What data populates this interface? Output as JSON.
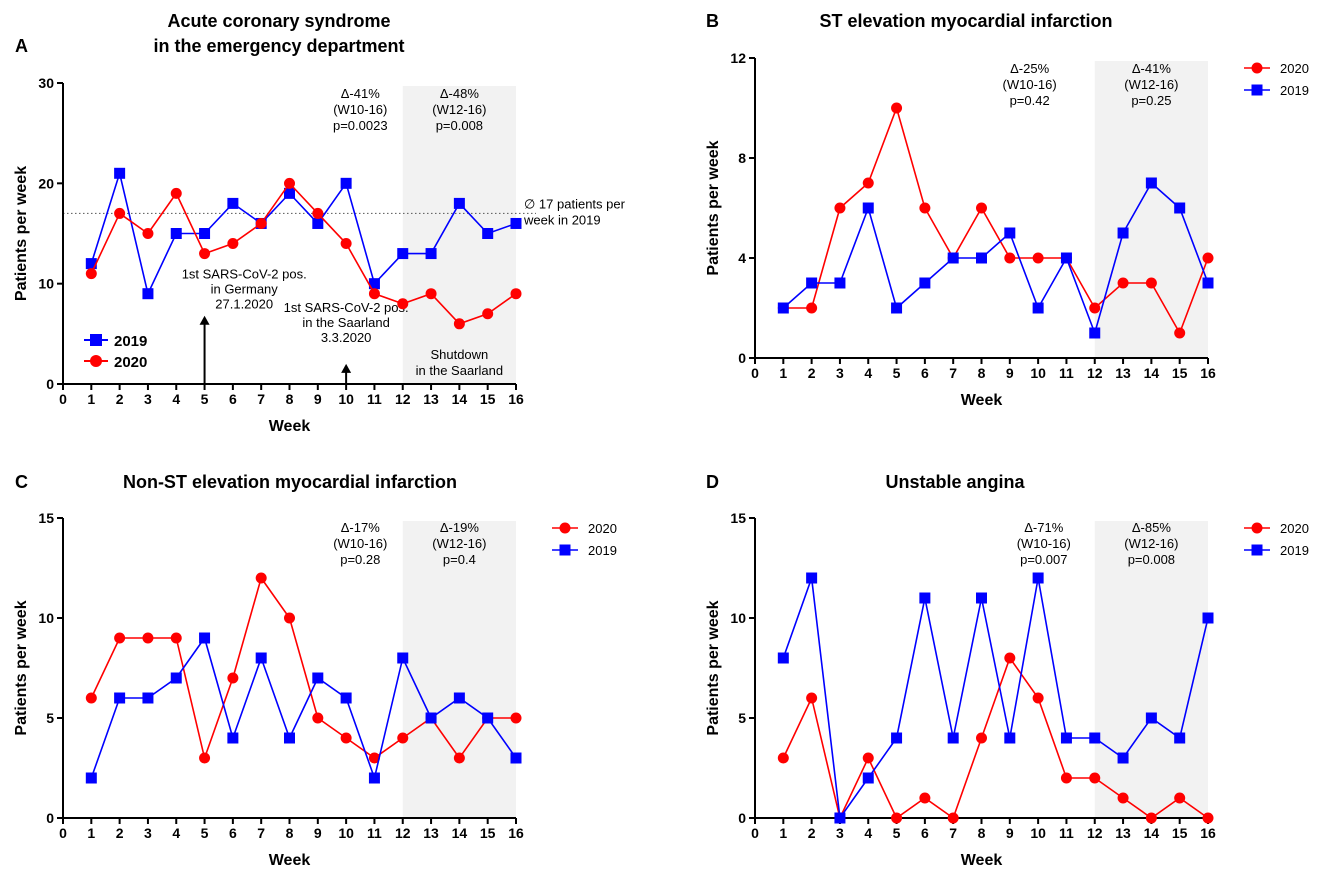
{
  "chart_data": [
    {
      "letter": "A",
      "type": "line",
      "title_lines": [
        "Acute coronary syndrome",
        "in the emergency department"
      ],
      "xlabel": "Week",
      "ylabel": "Patients per week",
      "xlim": [
        0,
        16
      ],
      "ylim": [
        0,
        30
      ],
      "yticks": [
        0,
        10,
        20,
        30
      ],
      "shaded_range": [
        12,
        16
      ],
      "series": [
        {
          "name": "2019",
          "color": "#0000ff",
          "marker": "square",
          "x": [
            1,
            2,
            3,
            4,
            5,
            6,
            7,
            8,
            9,
            10,
            11,
            12,
            13,
            14,
            15,
            16
          ],
          "y": [
            12,
            21,
            9,
            15,
            15,
            18,
            16,
            19,
            16,
            20,
            10,
            13,
            13,
            18,
            15,
            16
          ]
        },
        {
          "name": "2020",
          "color": "#ff0000",
          "marker": "circle",
          "x": [
            1,
            2,
            3,
            4,
            5,
            6,
            7,
            8,
            9,
            10,
            11,
            12,
            13,
            14,
            15,
            16
          ],
          "y": [
            11,
            17,
            15,
            19,
            13,
            14,
            16,
            20,
            17,
            14,
            9,
            8,
            9,
            6,
            7,
            9
          ]
        }
      ],
      "reference_line": {
        "y": 17,
        "label_lines": [
          "∅ 17 patients per",
          "week in 2019"
        ]
      },
      "annotations": [
        {
          "x": 10.5,
          "y": 28.5,
          "lines": [
            "Δ-41%",
            "(W10-16)",
            "p=0.0023"
          ]
        },
        {
          "x": 14,
          "y": 28.5,
          "lines": [
            "Δ-48%",
            "(W12-16)",
            "p=0.008"
          ]
        },
        {
          "x": 14,
          "y": 2.5,
          "lines": [
            "Shutdown",
            "in the Saarland"
          ]
        }
      ],
      "arrows": [
        {
          "x": 5,
          "y_from": 0,
          "y_to": 6.8,
          "lines": [
            "1st SARS-CoV-2 pos.",
            "in Germany",
            "27.1.2020"
          ],
          "label_x": 6.4,
          "label_y": 10.5
        },
        {
          "x": 10,
          "y_from": 0,
          "y_to": 2.0,
          "lines": [
            "1st SARS-CoV-2 pos.",
            "in the Saarland",
            "3.3.2020"
          ],
          "label_x": 10,
          "label_y": 7.2
        }
      ],
      "legend": {
        "placement": "bottom-left",
        "style": "large"
      }
    },
    {
      "letter": "B",
      "type": "line",
      "title_lines": [
        "ST elevation myocardial infarction"
      ],
      "xlabel": "Week",
      "ylabel": "Patients per week",
      "xlim": [
        0,
        16
      ],
      "ylim": [
        0,
        12
      ],
      "yticks": [
        0,
        4,
        8,
        12
      ],
      "shaded_range": [
        12,
        16
      ],
      "series": [
        {
          "name": "2020",
          "color": "#ff0000",
          "marker": "circle",
          "x": [
            1,
            2,
            3,
            4,
            5,
            6,
            7,
            8,
            9,
            10,
            11,
            12,
            13,
            14,
            15,
            16
          ],
          "y": [
            2,
            2,
            6,
            7,
            10,
            6,
            4,
            6,
            4,
            4,
            4,
            2,
            3,
            3,
            1,
            4
          ]
        },
        {
          "name": "2019",
          "color": "#0000ff",
          "marker": "square",
          "x": [
            1,
            2,
            3,
            4,
            5,
            6,
            7,
            8,
            9,
            10,
            11,
            12,
            13,
            14,
            15,
            16
          ],
          "y": [
            2,
            3,
            3,
            6,
            2,
            3,
            4,
            4,
            5,
            2,
            4,
            1,
            5,
            7,
            6,
            3
          ]
        }
      ],
      "annotations": [
        {
          "x": 9.7,
          "y": 11.4,
          "lines": [
            "Δ-25%",
            "(W10-16)",
            "p=0.42"
          ]
        },
        {
          "x": 14,
          "y": 11.4,
          "lines": [
            "Δ-41%",
            "(W12-16)",
            "p=0.25"
          ]
        }
      ],
      "legend": {
        "placement": "outside-right"
      }
    },
    {
      "letter": "C",
      "type": "line",
      "title_lines": [
        "Non-ST elevation myocardial infarction"
      ],
      "xlabel": "Week",
      "ylabel": "Patients per week",
      "xlim": [
        0,
        16
      ],
      "ylim": [
        0,
        15
      ],
      "yticks": [
        0,
        5,
        10,
        15
      ],
      "shaded_range": [
        12,
        16
      ],
      "series": [
        {
          "name": "2020",
          "color": "#ff0000",
          "marker": "circle",
          "x": [
            1,
            2,
            3,
            4,
            5,
            6,
            7,
            8,
            9,
            10,
            11,
            12,
            13,
            14,
            15,
            16
          ],
          "y": [
            6,
            9,
            9,
            9,
            3,
            7,
            12,
            10,
            5,
            4,
            3,
            4,
            5,
            3,
            5,
            5
          ]
        },
        {
          "name": "2019",
          "color": "#0000ff",
          "marker": "square",
          "x": [
            1,
            2,
            3,
            4,
            5,
            6,
            7,
            8,
            9,
            10,
            11,
            12,
            13,
            14,
            15,
            16
          ],
          "y": [
            2,
            6,
            6,
            7,
            9,
            4,
            8,
            4,
            7,
            6,
            2,
            8,
            5,
            6,
            5,
            3
          ]
        }
      ],
      "annotations": [
        {
          "x": 10.5,
          "y": 14.3,
          "lines": [
            "Δ-17%",
            "(W10-16)",
            "p=0.28"
          ]
        },
        {
          "x": 14,
          "y": 14.3,
          "lines": [
            "Δ-19%",
            "(W12-16)",
            "p=0.4"
          ]
        }
      ],
      "legend": {
        "placement": "outside-right"
      }
    },
    {
      "letter": "D",
      "type": "line",
      "title_lines": [
        "Unstable angina"
      ],
      "xlabel": "Week",
      "ylabel": "Patients per week",
      "xlim": [
        0,
        16
      ],
      "ylim": [
        0,
        15
      ],
      "yticks": [
        0,
        5,
        10,
        15
      ],
      "shaded_range": [
        12,
        16
      ],
      "series": [
        {
          "name": "2020",
          "color": "#ff0000",
          "marker": "circle",
          "x": [
            1,
            2,
            3,
            4,
            5,
            6,
            7,
            8,
            9,
            10,
            11,
            12,
            13,
            14,
            15,
            16
          ],
          "y": [
            3,
            6,
            0,
            3,
            0,
            1,
            0,
            4,
            8,
            6,
            2,
            2,
            1,
            0,
            1,
            0
          ]
        },
        {
          "name": "2019",
          "color": "#0000ff",
          "marker": "square",
          "x": [
            1,
            2,
            3,
            4,
            5,
            6,
            7,
            8,
            9,
            10,
            11,
            12,
            13,
            14,
            15,
            16
          ],
          "y": [
            8,
            12,
            0,
            2,
            4,
            11,
            4,
            11,
            4,
            12,
            4,
            4,
            3,
            5,
            4,
            10
          ]
        }
      ],
      "annotations": [
        {
          "x": 10.2,
          "y": 14.3,
          "lines": [
            "Δ-71%",
            "(W10-16)",
            "p=0.007"
          ]
        },
        {
          "x": 14,
          "y": 14.3,
          "lines": [
            "Δ-85%",
            "(W12-16)",
            "p=0.008"
          ]
        }
      ],
      "legend": {
        "placement": "outside-right"
      }
    }
  ]
}
